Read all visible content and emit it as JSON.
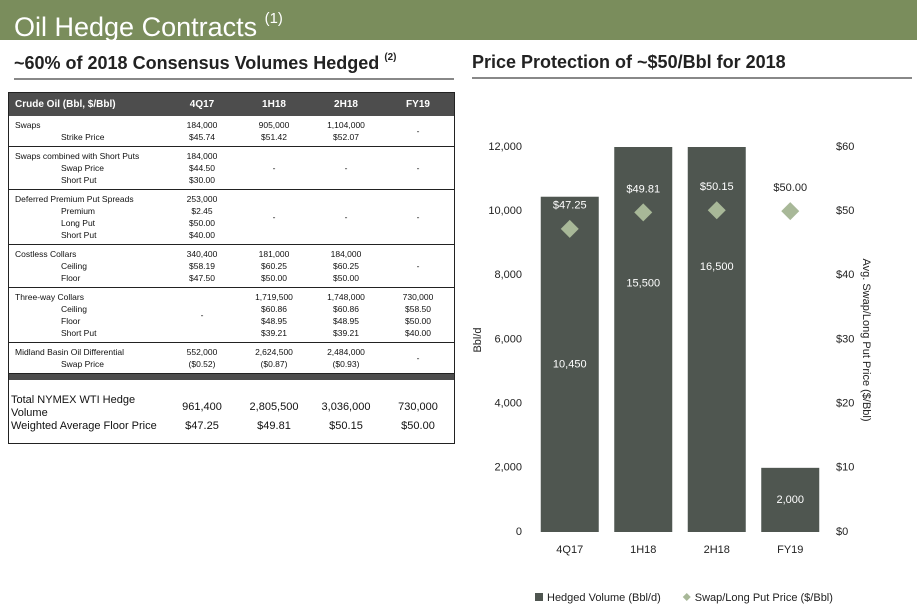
{
  "header": {
    "title": "Oil Hedge Contracts",
    "title_note": "(1)"
  },
  "table_section": {
    "title": "~60% of 2018 Consensus Volumes Hedged",
    "title_note": "(2)",
    "table": {
      "columns": [
        "Crude Oil (Bbl, $/Bbl)",
        "4Q17",
        "1H18",
        "2H18",
        "FY19"
      ],
      "groups": [
        {
          "labels": [
            "Swaps",
            "Strike Price"
          ],
          "cells": [
            [
              "184,000",
              "$45.74"
            ],
            [
              "905,000",
              "$51.42"
            ],
            [
              "1,104,000",
              "$52.07"
            ],
            [
              "-"
            ]
          ]
        },
        {
          "labels": [
            "Swaps combined with Short Puts",
            "Swap Price",
            "Short Put"
          ],
          "cells": [
            [
              "184,000",
              "$44.50",
              "$30.00"
            ],
            [
              "-"
            ],
            [
              "-"
            ],
            [
              "-"
            ]
          ]
        },
        {
          "labels": [
            "Deferred Premium Put Spreads",
            "Premium",
            "Long Put",
            "Short Put"
          ],
          "cells": [
            [
              "253,000",
              "$2.45",
              "$50.00",
              "$40.00"
            ],
            [
              "-"
            ],
            [
              "-"
            ],
            [
              "-"
            ]
          ]
        },
        {
          "labels": [
            "Costless Collars",
            "Ceiling",
            "Floor"
          ],
          "cells": [
            [
              "340,400",
              "$58.19",
              "$47.50"
            ],
            [
              "181,000",
              "$60.25",
              "$50.00"
            ],
            [
              "184,000",
              "$60.25",
              "$50.00"
            ],
            [
              "-"
            ]
          ]
        },
        {
          "labels": [
            "Three-way Collars",
            "Ceiling",
            "Floor",
            "Short Put"
          ],
          "cells": [
            [
              "-"
            ],
            [
              "1,719,500",
              "$60.86",
              "$48.95",
              "$39.21"
            ],
            [
              "1,748,000",
              "$60.86",
              "$48.95",
              "$39.21"
            ],
            [
              "730,000",
              "$58.50",
              "$50.00",
              "$40.00"
            ]
          ]
        },
        {
          "labels": [
            "Midland Basin Oil Differential",
            "Swap Price"
          ],
          "cells": [
            [
              "552,000",
              "($0.52)"
            ],
            [
              "2,624,500",
              "($0.87)"
            ],
            [
              "2,484,000",
              "($0.93)"
            ],
            [
              "-"
            ]
          ]
        }
      ],
      "totals": [
        {
          "label": "Total NYMEX WTI Hedge Volume",
          "cells": [
            "961,400",
            "2,805,500",
            "3,036,000",
            "730,000"
          ]
        },
        {
          "label": "Weighted Average Floor Price",
          "cells": [
            "$47.25",
            "$49.81",
            "$50.15",
            "$50.00"
          ]
        }
      ]
    }
  },
  "chart_data": {
    "type": "bar",
    "title": "Price Protection of ~$50/Bbl for 2018",
    "categories": [
      "4Q17",
      "1H18",
      "2H18",
      "FY19"
    ],
    "series": [
      {
        "name": "Hedged Volume (Bbl/d)",
        "type": "bar",
        "color": "#4f5650",
        "values": [
          10450,
          15500,
          16500,
          2000
        ],
        "value_labels": [
          "10,450",
          "15,500",
          "16,500",
          "2,000"
        ]
      },
      {
        "name": "Swap/Long Put Price ($/Bbl)",
        "type": "scatter",
        "axis": "y2",
        "color": "#a8b898",
        "values": [
          47.25,
          49.81,
          50.15,
          50.0
        ],
        "value_labels": [
          "$47.25",
          "$49.81",
          "$50.15",
          "$50.00"
        ]
      }
    ],
    "ylabel": "Bbl/d",
    "y2label": "Avg. Swap/Long Put Price ($/Bbl)",
    "ylim": [
      0,
      12000
    ],
    "yticks": [
      0,
      {
        "value": 2000,
        "label": "2,000"
      },
      {
        "value": 4000,
        "label": "4,000"
      },
      {
        "value": 6000,
        "label": "6,000"
      },
      {
        "value": 8000,
        "label": "8,000"
      },
      {
        "value": 10000,
        "label": "10,000"
      },
      {
        "value": 12000,
        "label": "12,000"
      }
    ],
    "y2lim": [
      0,
      60
    ],
    "y2ticks": [
      {
        "value": 0,
        "label": "$0"
      },
      {
        "value": 10,
        "label": "$10"
      },
      {
        "value": 20,
        "label": "$20"
      },
      {
        "value": 30,
        "label": "$30"
      },
      {
        "value": 40,
        "label": "$40"
      },
      {
        "value": 50,
        "label": "$50"
      },
      {
        "value": 60,
        "label": "$60"
      }
    ],
    "legend": "bottom",
    "grid": false
  }
}
